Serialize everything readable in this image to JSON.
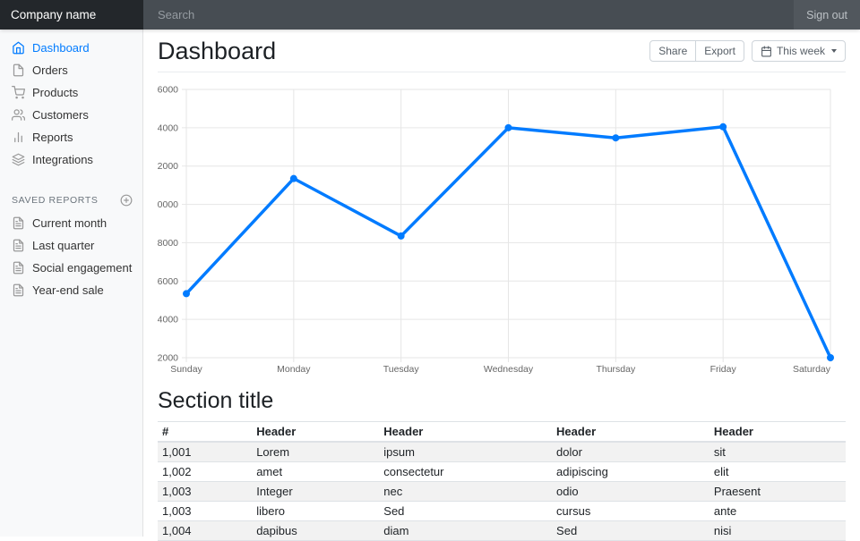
{
  "navbar": {
    "brand": "Company name",
    "search_placeholder": "Search",
    "sign_out": "Sign out"
  },
  "sidebar": {
    "items": [
      {
        "label": "Dashboard",
        "icon": "home",
        "active": true
      },
      {
        "label": "Orders",
        "icon": "file",
        "active": false
      },
      {
        "label": "Products",
        "icon": "shopping-cart",
        "active": false
      },
      {
        "label": "Customers",
        "icon": "users",
        "active": false
      },
      {
        "label": "Reports",
        "icon": "bar-chart",
        "active": false
      },
      {
        "label": "Integrations",
        "icon": "layers",
        "active": false
      }
    ],
    "saved": {
      "heading": "Saved reports",
      "add_icon": "plus-circle",
      "items": [
        {
          "label": "Current month",
          "icon": "file-text"
        },
        {
          "label": "Last quarter",
          "icon": "file-text"
        },
        {
          "label": "Social engagement",
          "icon": "file-text"
        },
        {
          "label": "Year-end sale",
          "icon": "file-text"
        }
      ]
    }
  },
  "header": {
    "title": "Dashboard",
    "share_label": "Share",
    "export_label": "Export",
    "week_label": "This week"
  },
  "chart_data": {
    "type": "line",
    "categories": [
      "Sunday",
      "Monday",
      "Tuesday",
      "Wednesday",
      "Thursday",
      "Friday",
      "Saturday"
    ],
    "values": [
      15340,
      21350,
      18350,
      24000,
      23470,
      24050,
      12000
    ],
    "title": "",
    "xlabel": "",
    "ylabel": "",
    "ylim": [
      12000,
      26000
    ],
    "ytick_step": 2000,
    "grid": true,
    "legend": false,
    "line_color": "#007bff",
    "point_color": "#007bff"
  },
  "section": {
    "title": "Section title",
    "columns": [
      "#",
      "Header",
      "Header",
      "Header",
      "Header"
    ],
    "col_widths": [
      "13.7%",
      "18.5%",
      "25.1%",
      "22.9%",
      "19.8%"
    ],
    "rows": [
      [
        "1,001",
        "Lorem",
        "ipsum",
        "dolor",
        "sit"
      ],
      [
        "1,002",
        "amet",
        "consectetur",
        "adipiscing",
        "elit"
      ],
      [
        "1,003",
        "Integer",
        "nec",
        "odio",
        "Praesent"
      ],
      [
        "1,003",
        "libero",
        "Sed",
        "cursus",
        "ante"
      ],
      [
        "1,004",
        "dapibus",
        "diam",
        "Sed",
        "nisi"
      ]
    ]
  },
  "colors": {
    "accent": "#007bff",
    "navbar_brand_bg": "#23272b",
    "navbar_search_bg": "#474d53",
    "navbar_signout_bg": "#51575d",
    "sidebar_bg": "#f8f9fa",
    "grid_line": "#e6e6e6",
    "table_stripe": "#f2f2f2"
  }
}
